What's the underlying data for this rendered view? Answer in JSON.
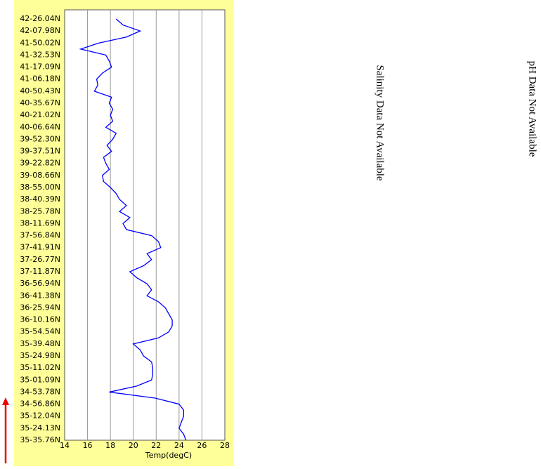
{
  "chart_data": {
    "type": "line",
    "xlabel": "Temp(degC)",
    "categories": [
      "42-26.04N",
      null,
      "42-07.98N",
      null,
      "41-50.02N",
      null,
      "41-32.53N",
      null,
      "41-17.09N",
      null,
      "41-06.18N",
      null,
      "40-50.43N",
      null,
      "40-35.67N",
      null,
      "40-21.02N",
      null,
      "40-06.64N",
      null,
      "39-52.30N",
      null,
      "39-37.51N",
      null,
      "39-22.82N",
      null,
      "39-08.66N",
      null,
      "38-55.00N",
      null,
      "38-40.39N",
      null,
      "38-25.78N",
      null,
      "38-11.69N",
      null,
      "37-56.84N",
      null,
      "37-41.91N",
      null,
      "37-26.77N",
      null,
      "37-11.87N",
      null,
      "36-56.94N",
      null,
      "36-41.38N",
      null,
      "36-25.94N",
      null,
      "36-10.16N",
      null,
      "35-54.54N",
      null,
      "35-39.48N",
      null,
      "35-24.98N",
      null,
      "35-11.02N",
      null,
      "35-01.09N",
      null,
      "34-53.78N",
      null,
      "34-56.86N",
      null,
      "35-12.04N",
      null,
      "35-24.13N",
      null,
      "35-35.76N"
    ],
    "series": [
      {
        "color": "#0000ff",
        "values": [
          18.5,
          19.1,
          20.6,
          19.4,
          17.0,
          15.4,
          17.6,
          17.9,
          18.1,
          17.3,
          16.8,
          16.9,
          16.6,
          18.1,
          17.9,
          18.2,
          18.0,
          18.2,
          17.6,
          18.5,
          18.2,
          17.7,
          18.1,
          17.4,
          17.6,
          17.9,
          17.3,
          17.4,
          18.0,
          18.5,
          18.8,
          19.4,
          18.8,
          19.7,
          19.1,
          19.4,
          21.6,
          22.2,
          22.4,
          21.2,
          21.6,
          20.9,
          19.7,
          20.3,
          21.2,
          21.6,
          21.2,
          22.2,
          22.8,
          23.1,
          23.4,
          23.4,
          23.1,
          22.2,
          20.0,
          20.6,
          20.9,
          21.6,
          21.7,
          21.7,
          21.6,
          20.3,
          17.9,
          21.9,
          24.0,
          24.4,
          24.4,
          24.2,
          24.0,
          24.4,
          24.6
        ]
      }
    ],
    "xlim": [
      14,
      28
    ],
    "xticks": [
      14,
      16,
      18,
      20,
      22,
      24,
      26,
      28
    ],
    "grid": true
  },
  "notes": {
    "salinity": "Salinity Data Not Available",
    "ph": "pH Data Not Available"
  }
}
